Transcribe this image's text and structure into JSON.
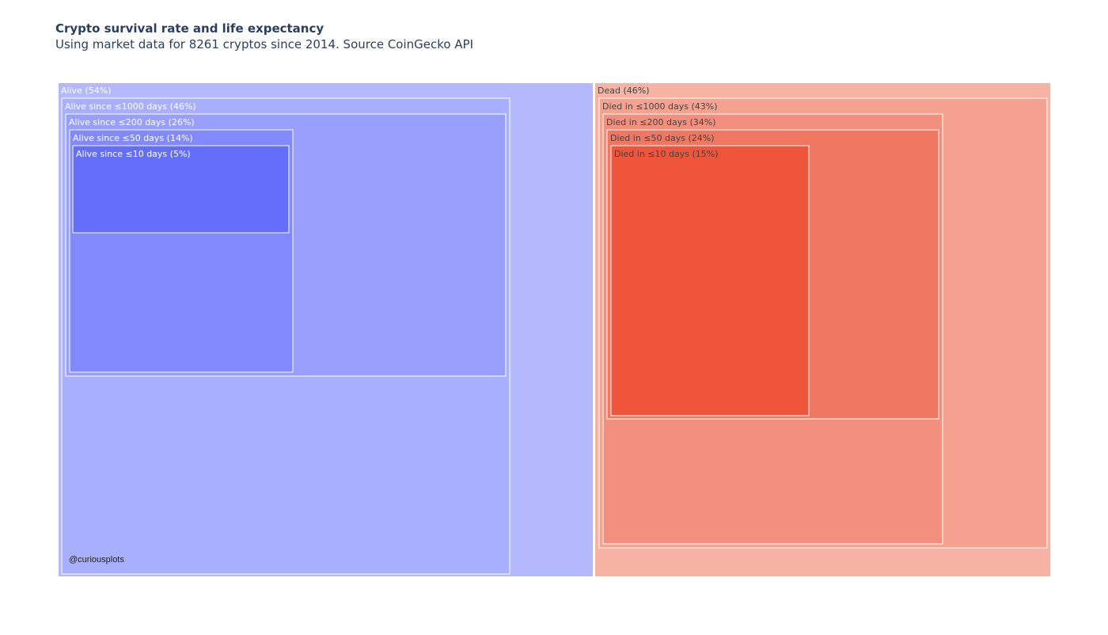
{
  "title": "Crypto survival rate and life expectancy",
  "subtitle": "Using market data for 8261 cryptos since 2014. Source CoinGecko API",
  "watermark": "@curiousplots",
  "chart_data": {
    "type": "treemap",
    "nodes": [
      {
        "id": "alive",
        "label": "Alive (54%)",
        "percent": 54,
        "color": "#b3b9fc",
        "text_color": "#ffffff"
      },
      {
        "id": "alive1000",
        "parent": "alive",
        "label": "Alive since ≤1000 days (46%)",
        "percent": 46,
        "color": "#a8affd",
        "text_color": "#ffffff"
      },
      {
        "id": "alive200",
        "parent": "alive1000",
        "label": "Alive since ≤200 days (26%)",
        "percent": 26,
        "color": "#989ffd",
        "text_color": "#ffffff"
      },
      {
        "id": "alive50",
        "parent": "alive200",
        "label": "Alive since ≤50 days (14%)",
        "percent": 14,
        "color": "#8189fd",
        "text_color": "#ffffff"
      },
      {
        "id": "alive10",
        "parent": "alive50",
        "label": "Alive since ≤10 days (5%)",
        "percent": 5,
        "color": "#636efa",
        "text_color": "#ffffff"
      },
      {
        "id": "dead",
        "label": "Dead (46%)",
        "percent": 46,
        "color": "#f6b2a2",
        "text_color": "#444444"
      },
      {
        "id": "dead1000",
        "parent": "dead",
        "label": "Died in ≤1000 days (43%)",
        "percent": 43,
        "color": "#f6a291",
        "text_color": "#444444"
      },
      {
        "id": "dead200",
        "parent": "dead1000",
        "label": "Died in ≤200 days (34%)",
        "percent": 34,
        "color": "#f3907d",
        "text_color": "#444444"
      },
      {
        "id": "dead50",
        "parent": "dead200",
        "label": "Died in ≤50 days (24%)",
        "percent": 24,
        "color": "#f07762",
        "text_color": "#444444"
      },
      {
        "id": "dead10",
        "parent": "dead50",
        "label": "Died in ≤10 days (15%)",
        "percent": 15,
        "color": "#ef553b",
        "text_color": "#444444"
      }
    ]
  }
}
